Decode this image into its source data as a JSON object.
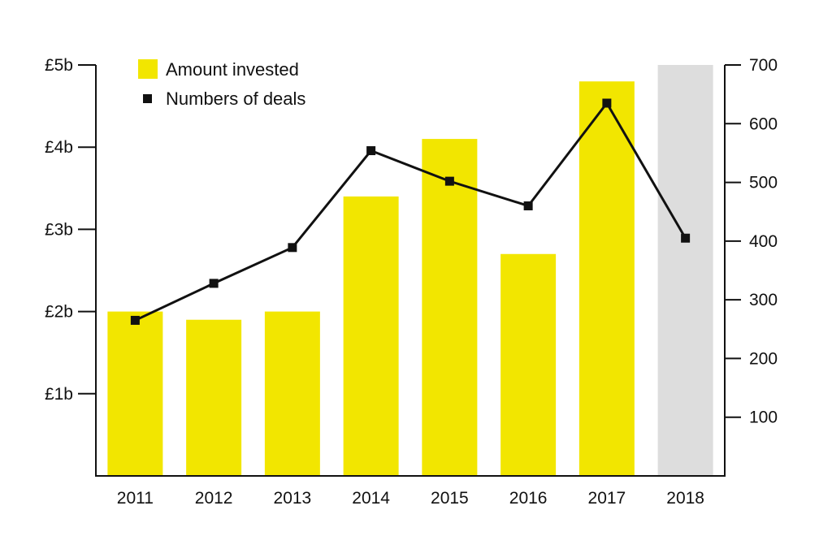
{
  "chart_data": {
    "type": "bar",
    "categories": [
      "2011",
      "2012",
      "2013",
      "2014",
      "2015",
      "2016",
      "2017",
      "2018"
    ],
    "series": [
      {
        "name": "Amount invested",
        "type": "bar",
        "axis": "left",
        "unit": "£b",
        "values": [
          2.0,
          1.9,
          2.0,
          3.4,
          4.1,
          2.7,
          4.8,
          5.0
        ],
        "colors": [
          "#f2e600",
          "#f2e600",
          "#f2e600",
          "#f2e600",
          "#f2e600",
          "#f2e600",
          "#f2e600",
          "#dddddd"
        ]
      },
      {
        "name": "Numbers of deals",
        "type": "line",
        "axis": "right",
        "marker": "square",
        "color": "#111111",
        "values": [
          265,
          328,
          389,
          554,
          502,
          460,
          635,
          405
        ]
      }
    ],
    "y_left": {
      "ylim": [
        0,
        5
      ],
      "ticks": [
        1,
        2,
        3,
        4,
        5
      ],
      "tick_labels": [
        "£1b",
        "£2b",
        "£3b",
        "£4b",
        "£5b"
      ]
    },
    "y_right": {
      "ylim": [
        0,
        700
      ],
      "ticks": [
        100,
        200,
        300,
        400,
        500,
        600,
        700
      ],
      "tick_labels": [
        "100",
        "200",
        "300",
        "400",
        "500",
        "600",
        "700"
      ]
    },
    "title": "",
    "xlabel": "",
    "grid": false,
    "legend": {
      "position": "top-left",
      "entries": [
        {
          "label": "Amount invested",
          "swatch": "square",
          "color": "#f2e600"
        },
        {
          "label": "Numbers of deals",
          "swatch": "small-square",
          "color": "#111111"
        }
      ]
    }
  }
}
